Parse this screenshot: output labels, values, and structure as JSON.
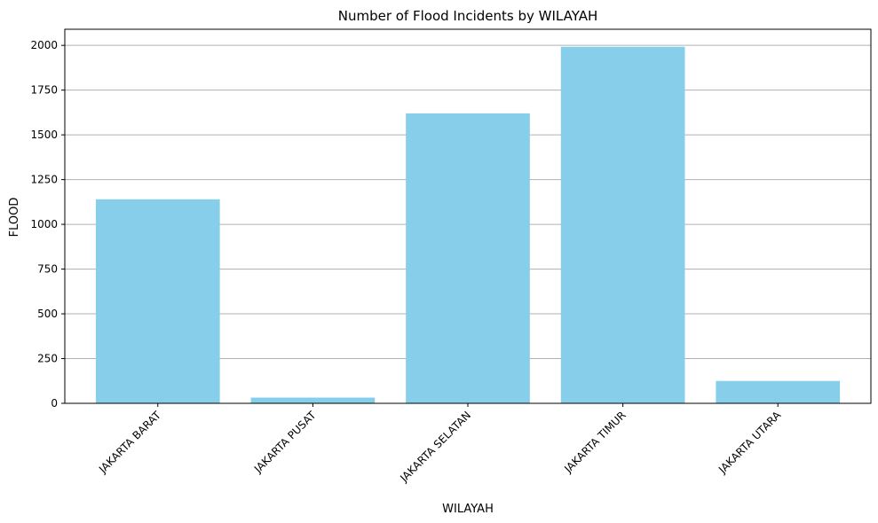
{
  "chart_data": {
    "type": "bar",
    "title": "Number of Flood Incidents by WILAYAH",
    "xlabel": "WILAYAH",
    "ylabel": "FLOOD",
    "categories": [
      "JAKARTA BARAT",
      "JAKARTA PUSAT",
      "JAKARTA SELATAN",
      "JAKARTA TIMUR",
      "JAKARTA UTARA"
    ],
    "values": [
      1140,
      32,
      1620,
      1992,
      125
    ],
    "ylim": [
      0,
      2090
    ],
    "yticks": [
      0,
      250,
      500,
      750,
      1000,
      1250,
      1500,
      1750,
      2000
    ],
    "grid": "y",
    "legend": "none",
    "colors": {
      "bar": "#87CEEB",
      "grid": "#b0b0b0",
      "axis": "#000000"
    }
  }
}
